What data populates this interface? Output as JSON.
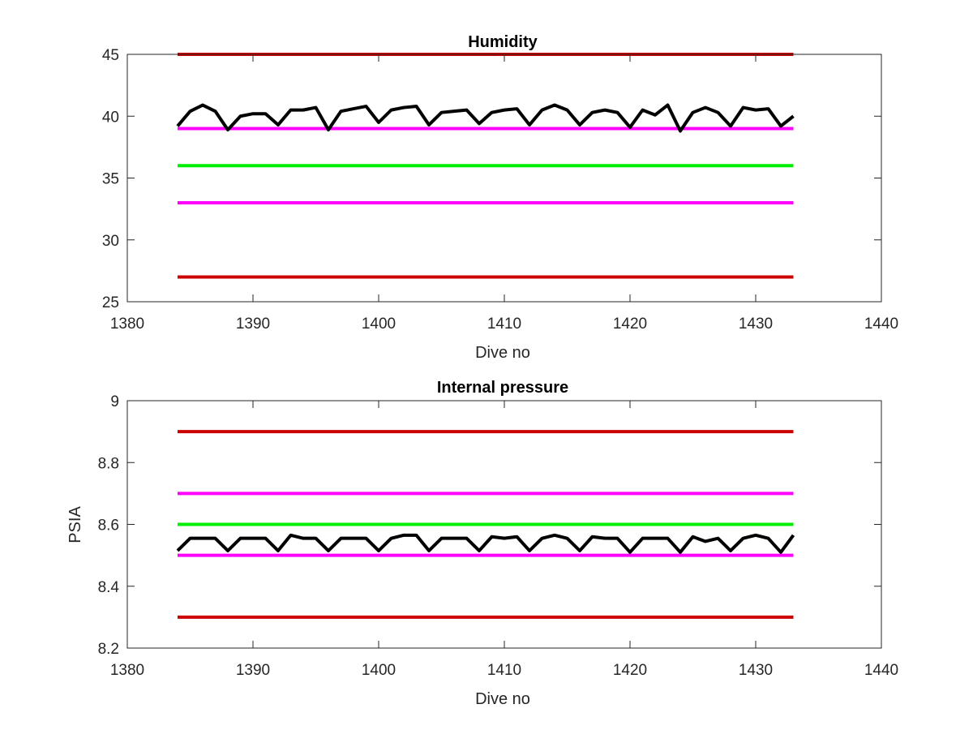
{
  "chart_data": [
    {
      "type": "line",
      "title": "Humidity",
      "xlabel": "Dive no",
      "ylabel": "",
      "xlim": [
        1380,
        1440
      ],
      "ylim": [
        25,
        45
      ],
      "xticks": [
        1380,
        1390,
        1400,
        1410,
        1420,
        1430,
        1440
      ],
      "yticks": [
        25,
        30,
        35,
        40,
        45
      ],
      "grid": false,
      "series": [
        {
          "color": "#cc0000",
          "x": [
            1384,
            1433
          ],
          "y": [
            45,
            45
          ]
        },
        {
          "color": "#ff00ff",
          "x": [
            1384,
            1433
          ],
          "y": [
            39,
            39
          ]
        },
        {
          "color": "#00ee00",
          "x": [
            1384,
            1433
          ],
          "y": [
            36,
            36
          ]
        },
        {
          "color": "#ff00ff",
          "x": [
            1384,
            1433
          ],
          "y": [
            33,
            33
          ]
        },
        {
          "color": "#cc0000",
          "x": [
            1384,
            1433
          ],
          "y": [
            27,
            27
          ]
        },
        {
          "color": "#000000",
          "x": [
            1384,
            1385,
            1386,
            1387,
            1388,
            1389,
            1390,
            1391,
            1392,
            1393,
            1394,
            1395,
            1396,
            1397,
            1398,
            1399,
            1400,
            1401,
            1402,
            1403,
            1404,
            1405,
            1406,
            1407,
            1408,
            1409,
            1410,
            1411,
            1412,
            1413,
            1414,
            1415,
            1416,
            1417,
            1418,
            1419,
            1420,
            1421,
            1422,
            1423,
            1424,
            1425,
            1426,
            1427,
            1428,
            1429,
            1430,
            1431,
            1432,
            1433
          ],
          "y": [
            39.2,
            40.4,
            40.9,
            40.4,
            38.9,
            40.0,
            40.2,
            40.2,
            39.3,
            40.5,
            40.5,
            40.7,
            38.9,
            40.4,
            40.6,
            40.8,
            39.5,
            40.5,
            40.7,
            40.8,
            39.3,
            40.3,
            40.4,
            40.5,
            39.4,
            40.3,
            40.5,
            40.6,
            39.3,
            40.5,
            40.9,
            40.5,
            39.3,
            40.3,
            40.5,
            40.3,
            39.1,
            40.5,
            40.1,
            40.9,
            38.8,
            40.3,
            40.7,
            40.3,
            39.2,
            40.7,
            40.5,
            40.6,
            39.2,
            40.0
          ]
        }
      ]
    },
    {
      "type": "line",
      "title": "Internal pressure",
      "xlabel": "Dive no",
      "ylabel": "PSIA",
      "xlim": [
        1380,
        1440
      ],
      "ylim": [
        8.2,
        9.0
      ],
      "xticks": [
        1380,
        1390,
        1400,
        1410,
        1420,
        1430,
        1440
      ],
      "yticks": [
        8.2,
        8.4,
        8.6,
        8.8,
        9.0
      ],
      "ytick_labels": [
        "8.2",
        "8.4",
        "8.6",
        "8.8",
        "9"
      ],
      "grid": false,
      "series": [
        {
          "color": "#cc0000",
          "x": [
            1384,
            1433
          ],
          "y": [
            8.9,
            8.9
          ]
        },
        {
          "color": "#ff00ff",
          "x": [
            1384,
            1433
          ],
          "y": [
            8.7,
            8.7
          ]
        },
        {
          "color": "#00ee00",
          "x": [
            1384,
            1433
          ],
          "y": [
            8.6,
            8.6
          ]
        },
        {
          "color": "#ff00ff",
          "x": [
            1384,
            1433
          ],
          "y": [
            8.5,
            8.5
          ]
        },
        {
          "color": "#cc0000",
          "x": [
            1384,
            1433
          ],
          "y": [
            8.3,
            8.3
          ]
        },
        {
          "color": "#000000",
          "x": [
            1384,
            1385,
            1386,
            1387,
            1388,
            1389,
            1390,
            1391,
            1392,
            1393,
            1394,
            1395,
            1396,
            1397,
            1398,
            1399,
            1400,
            1401,
            1402,
            1403,
            1404,
            1405,
            1406,
            1407,
            1408,
            1409,
            1410,
            1411,
            1412,
            1413,
            1414,
            1415,
            1416,
            1417,
            1418,
            1419,
            1420,
            1421,
            1422,
            1423,
            1424,
            1425,
            1426,
            1427,
            1428,
            1429,
            1430,
            1431,
            1432,
            1433
          ],
          "y": [
            8.515,
            8.555,
            8.555,
            8.555,
            8.515,
            8.555,
            8.555,
            8.555,
            8.515,
            8.565,
            8.555,
            8.555,
            8.515,
            8.555,
            8.555,
            8.555,
            8.515,
            8.555,
            8.565,
            8.565,
            8.515,
            8.555,
            8.555,
            8.555,
            8.515,
            8.56,
            8.555,
            8.56,
            8.515,
            8.555,
            8.565,
            8.555,
            8.515,
            8.56,
            8.555,
            8.555,
            8.51,
            8.555,
            8.555,
            8.555,
            8.51,
            8.56,
            8.545,
            8.555,
            8.515,
            8.555,
            8.565,
            8.555,
            8.51,
            8.565
          ]
        }
      ]
    }
  ]
}
